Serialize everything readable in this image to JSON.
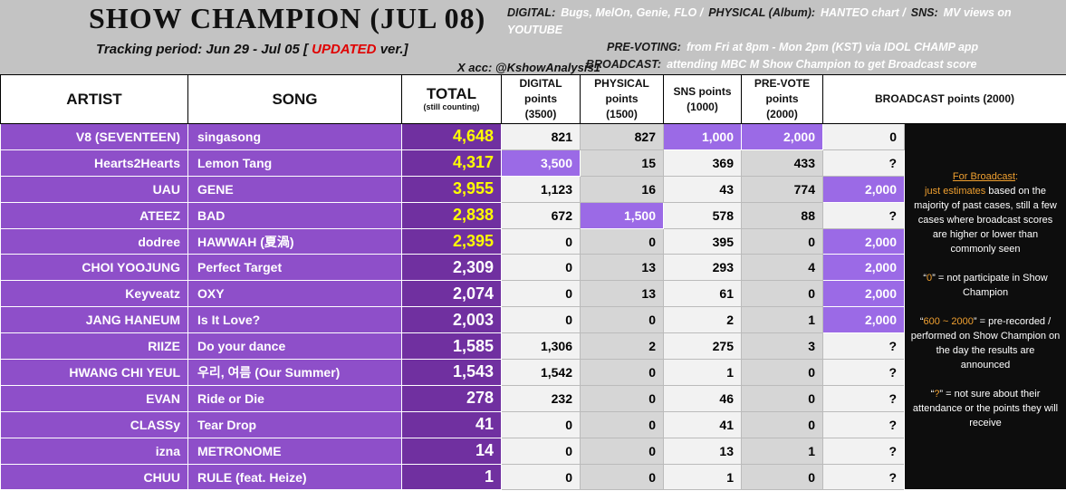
{
  "header": {
    "title": "SHOW CHAMPION (JUL 08)",
    "tracking": {
      "prefix": "Tracking period: Jun 29 - Jul 05 [",
      "updated": "UPDATED",
      "suffix": "ver.]"
    },
    "notes": [
      [
        {
          "label": "DIGITAL:",
          "text": "Bugs, MelOn, Genie, FLO /"
        },
        {
          "label": "PHYSICAL (Album):",
          "text": "HANTEO chart /"
        },
        {
          "label": "SNS:",
          "text": "MV views on YOUTUBE"
        }
      ],
      [
        {
          "label": "PRE-VOTING:",
          "text": "from Fri at 8pm - Mon 2pm (KST) via IDOL CHAMP app"
        }
      ],
      [
        {
          "label": "BROADCAST:",
          "text": "attending MBC M Show Champion to get Broadcast score"
        }
      ]
    ],
    "x_account": "X acc: @KshowAnalysis1"
  },
  "table": {
    "columns": {
      "artist": "ARTIST",
      "song": "SONG",
      "total": {
        "label": "TOTAL",
        "sub": "(still counting)"
      },
      "digital": [
        "DIGITAL",
        "points",
        "(3500)"
      ],
      "physical": [
        "PHYSICAL",
        "points",
        "(1500)"
      ],
      "sns": [
        "SNS points",
        "(1000)"
      ],
      "prevote": [
        "PRE-VOTE",
        "points",
        "(2000)"
      ],
      "broadcast": "BROADCAST points (2000)"
    },
    "rows": [
      [
        "V8 (SEVENTEEN)",
        "singasong",
        "4,648",
        "821",
        "827",
        "1,000",
        "2,000",
        "0"
      ],
      [
        "Hearts2Hearts",
        "Lemon Tang",
        "4,317",
        "3,500",
        "15",
        "369",
        "433",
        "?"
      ],
      [
        "UAU",
        "GENE",
        "3,955",
        "1,123",
        "16",
        "43",
        "774",
        "2,000"
      ],
      [
        "ATEEZ",
        "BAD",
        "2,838",
        "672",
        "1,500",
        "578",
        "88",
        "?"
      ],
      [
        "dodree",
        "HAWWAH (夏渦)",
        "2,395",
        "0",
        "0",
        "395",
        "0",
        "2,000"
      ],
      [
        "CHOI YOOJUNG",
        "Perfect Target",
        "2,309",
        "0",
        "13",
        "293",
        "4",
        "2,000"
      ],
      [
        "Keyveatz",
        "OXY",
        "2,074",
        "0",
        "13",
        "61",
        "0",
        "2,000"
      ],
      [
        "JANG HANEUM",
        "Is It Love?",
        "2,003",
        "0",
        "0",
        "2",
        "1",
        "2,000"
      ],
      [
        "RIIZE",
        "Do your dance",
        "1,585",
        "1,306",
        "2",
        "275",
        "3",
        "?"
      ],
      [
        "HWANG CHI YEUL",
        "우리, 여름 (Our Summer)",
        "1,543",
        "1,542",
        "0",
        "1",
        "0",
        "?"
      ],
      [
        "EVAN",
        "Ride or Die",
        "278",
        "232",
        "0",
        "46",
        "0",
        "?"
      ],
      [
        "CLASSy",
        "Tear Drop",
        "41",
        "0",
        "0",
        "41",
        "0",
        "?"
      ],
      [
        "izna",
        "METRONOME",
        "14",
        "0",
        "0",
        "13",
        "1",
        "?"
      ],
      [
        "CHUU",
        "RULE (feat. Heize)",
        "1",
        "0",
        "0",
        "1",
        "0",
        "?"
      ]
    ]
  },
  "sidebar": {
    "heading": "For Broadcast",
    "colon": ":",
    "paragraphs": [
      [
        {
          "hl": "just estimates"
        },
        {
          "t": "based on the majority of past cases, still a few cases where broadcast scores are higher or lower than commonly seen"
        }
      ],
      [
        {
          "t": "“"
        },
        {
          "hl": "0"
        },
        {
          "t": "” = not participate in Show Champion"
        }
      ],
      [
        {
          "t": "“"
        },
        {
          "hl": "600 ~ 2000"
        },
        {
          "t": "” = pre-recorded / performed on Show Champion on the day the results are announced"
        }
      ],
      [
        {
          "t": "“"
        },
        {
          "hl": "?"
        },
        {
          "t": "” = not sure about their attendance or the points they will receive"
        }
      ]
    ]
  }
}
